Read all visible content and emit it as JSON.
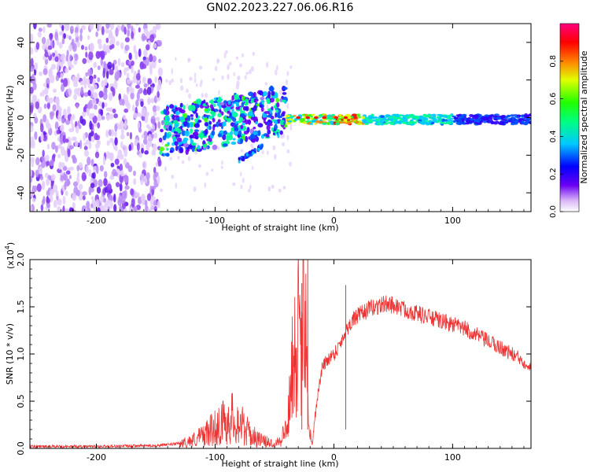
{
  "title": "GN02.2023.227.06.06.R16",
  "chart_data": [
    {
      "type": "heatmap",
      "title": "GN02.2023.227.06.06.R16",
      "xlabel": "Height of straight line (km)",
      "ylabel": "Frequency (Hz)",
      "xlim": [
        -256,
        166
      ],
      "ylim": [
        -50,
        50
      ],
      "x_ticks": [
        -200,
        -100,
        0,
        100
      ],
      "x_tick_labels": [
        "-200",
        "-100",
        "0",
        "100"
      ],
      "y_ticks": [
        -40,
        -20,
        0,
        20,
        40
      ],
      "y_tick_labels": [
        "-40",
        "-20",
        "0",
        "20",
        "40"
      ],
      "colorbar": {
        "label": "Normalized spectral amplitude",
        "range": [
          0,
          1
        ],
        "ticks": [
          0.0,
          0.2,
          0.4,
          0.6,
          0.8
        ],
        "tick_labels": [
          "0.0",
          "0.2",
          "0.4",
          "0.6",
          "0.8"
        ],
        "colormap": "rainbow (purple-blue-cyan-green-yellow-red-magenta)"
      },
      "regions": [
        {
          "x_range": [
            -256,
            -146
          ],
          "freq_range": [
            -50,
            50
          ],
          "amplitude": "low, diffuse noise (white-purple)"
        },
        {
          "x_range": [
            -146,
            -40
          ],
          "freq_range": [
            -25,
            15
          ],
          "amplitude": "moderate, scattered blue/cyan blobs"
        },
        {
          "x_range": [
            -80,
            -60
          ],
          "freq_range": [
            -25,
            -15
          ],
          "amplitude": "tilted blue streak"
        },
        {
          "x_range": [
            -40,
            166
          ],
          "freq_center": 0,
          "freq_halfwidth": 3,
          "amplitude": "narrow band, peaks near 0-20 km (red/yellow), fading to green/cyan"
        }
      ]
    },
    {
      "type": "line",
      "xlabel": "Height of straight line (km)",
      "ylabel": "SNR (10 * v/v)",
      "y_scale_label": "(x10",
      "y_scale_exponent": "4",
      "y_scale_suffix": ")",
      "xlim": [
        -256,
        166
      ],
      "ylim": [
        0,
        2.0
      ],
      "x_ticks": [
        -200,
        -100,
        0,
        100
      ],
      "x_tick_labels": [
        "-200",
        "-100",
        "0",
        "100"
      ],
      "y_ticks": [
        0,
        0.5,
        1.0,
        1.5,
        2.0
      ],
      "y_tick_labels": [
        "0.0",
        "0.5",
        "1.0",
        "1.5",
        "2.0"
      ],
      "series": [
        {
          "name": "SNR",
          "color": "#ee3333",
          "x": [
            -256,
            -200,
            -150,
            -130,
            -120,
            -110,
            -100,
            -90,
            -85,
            -80,
            -70,
            -60,
            -50,
            -45,
            -40,
            -36,
            -34,
            -32,
            -30,
            -28,
            -26,
            -24,
            -22,
            -20,
            -18,
            -15,
            -10,
            -5,
            0,
            5,
            10,
            15,
            20,
            30,
            40,
            45,
            50,
            60,
            70,
            80,
            90,
            100,
            110,
            120,
            130,
            140,
            150,
            160,
            166
          ],
          "y": [
            0.02,
            0.02,
            0.03,
            0.05,
            0.08,
            0.14,
            0.22,
            0.3,
            0.32,
            0.28,
            0.14,
            0.08,
            0.05,
            0.1,
            0.2,
            0.6,
            1.3,
            1.0,
            1.3,
            0.8,
            1.5,
            1.85,
            0.5,
            0.15,
            0.05,
            0.45,
            0.85,
            0.95,
            1.0,
            1.1,
            1.25,
            1.35,
            1.4,
            1.48,
            1.52,
            1.53,
            1.52,
            1.47,
            1.43,
            1.39,
            1.35,
            1.31,
            1.27,
            1.2,
            1.13,
            1.07,
            1.0,
            0.92,
            0.88
          ]
        }
      ],
      "spikes": [
        {
          "x": -27,
          "y": 1.75
        },
        {
          "x": -22,
          "y": 2.0
        },
        {
          "x": 10,
          "y": 1.73
        }
      ]
    }
  ]
}
